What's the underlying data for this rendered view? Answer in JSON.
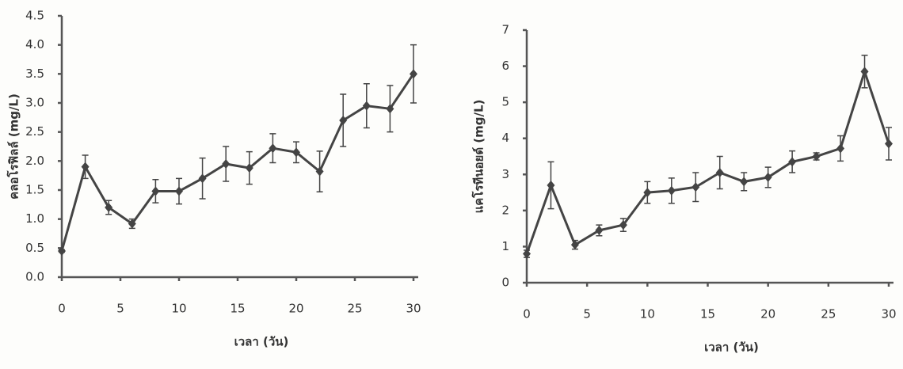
{
  "chart_data": [
    {
      "type": "line",
      "ylabel": "คลอโรฟิลล์ (mg/L)",
      "xlabel": "เวลา (วัน)",
      "color": "#444",
      "x": [
        0,
        2,
        4,
        6,
        8,
        10,
        12,
        14,
        16,
        18,
        20,
        22,
        24,
        26,
        28,
        30
      ],
      "values": [
        0.45,
        1.9,
        1.2,
        0.92,
        1.48,
        1.48,
        1.7,
        1.95,
        1.88,
        2.22,
        2.15,
        1.82,
        2.7,
        2.95,
        2.9,
        3.5
      ],
      "errors": [
        0.02,
        0.2,
        0.12,
        0.08,
        0.2,
        0.22,
        0.35,
        0.3,
        0.28,
        0.25,
        0.18,
        0.35,
        0.45,
        0.38,
        0.4,
        0.5
      ],
      "xlim": [
        0,
        30
      ],
      "xticks": [
        0,
        5,
        10,
        15,
        20,
        25,
        30
      ],
      "ylim": [
        0,
        4.5
      ],
      "yticks": [
        {
          "value": 0,
          "label": "0.0"
        },
        0.5,
        {
          "value": 1,
          "label": "1.0"
        },
        1.5,
        {
          "value": 2,
          "label": "2.0"
        },
        2.5,
        {
          "value": 3,
          "label": "3.0"
        },
        3.5,
        {
          "value": 4,
          "label": "4.0"
        },
        4.5
      ]
    },
    {
      "type": "line",
      "ylabel": "แคโรทีนอยด์ (mg/L)",
      "xlabel": "เวลา (วัน)",
      "color": "#444",
      "x": [
        0,
        2,
        4,
        6,
        8,
        10,
        12,
        14,
        16,
        18,
        20,
        22,
        24,
        26,
        28,
        30
      ],
      "values": [
        0.8,
        2.7,
        1.05,
        1.45,
        1.6,
        2.5,
        2.55,
        2.65,
        3.05,
        2.8,
        2.92,
        3.35,
        3.5,
        3.72,
        5.85,
        3.85
      ],
      "errors": [
        0.1,
        0.65,
        0.12,
        0.15,
        0.18,
        0.3,
        0.35,
        0.4,
        0.45,
        0.25,
        0.28,
        0.3,
        0.1,
        0.35,
        0.45,
        0.45
      ],
      "xlim": [
        0,
        30
      ],
      "xticks": [
        0,
        5,
        10,
        15,
        20,
        25,
        30
      ],
      "ylim": [
        0,
        7
      ],
      "yticks": [
        0,
        1,
        2,
        3,
        4,
        5,
        6,
        7
      ]
    }
  ]
}
